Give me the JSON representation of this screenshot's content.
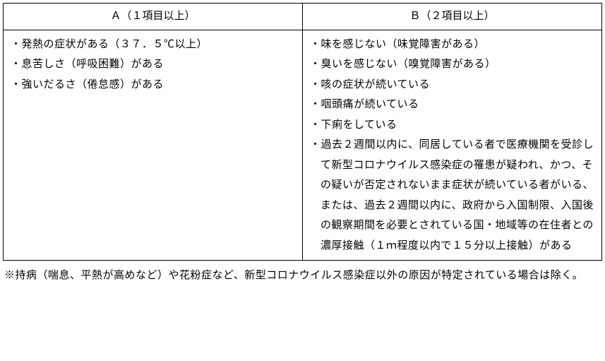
{
  "table": {
    "headers": {
      "a": "Ａ（１項目以上）",
      "b": "Ｂ（２項目以上）"
    },
    "columnA": {
      "items": [
        "・発熱の症状がある（３７．５℃以上）",
        "・息苦しさ（呼吸困難）がある",
        "・強いだるさ（倦怠感）がある"
      ]
    },
    "columnB": {
      "items": [
        "・味を感じない（味覚障害がある）",
        "・臭いを感じない（嗅覚障害がある）",
        "・咳の症状が続いている",
        "・咽頭痛が続いている",
        "・下痢をしている",
        "・過去２週間以内に、同居している者で医療機関を受診して新型コロナウイルス感染症の罹患が疑われ、かつ、その疑いが否定されないまま症状が続いている者がいる、または、過去２週間以内に、政府から入国制限、入国後の観察期間を必要とされている国・地域等の在住者との濃厚接触（１ｍ程度以内で１５分以上接触）がある"
      ]
    }
  },
  "footnote": "※持病（喘息、平熱が高めなど）や花粉症など、新型コロナウイルス感染症以外の原因が特定されている場合は除く。",
  "style": {
    "border_color": "#000000",
    "text_color": "#000000",
    "background_color": "#ffffff",
    "font_size": 15,
    "line_height": 1.9
  }
}
